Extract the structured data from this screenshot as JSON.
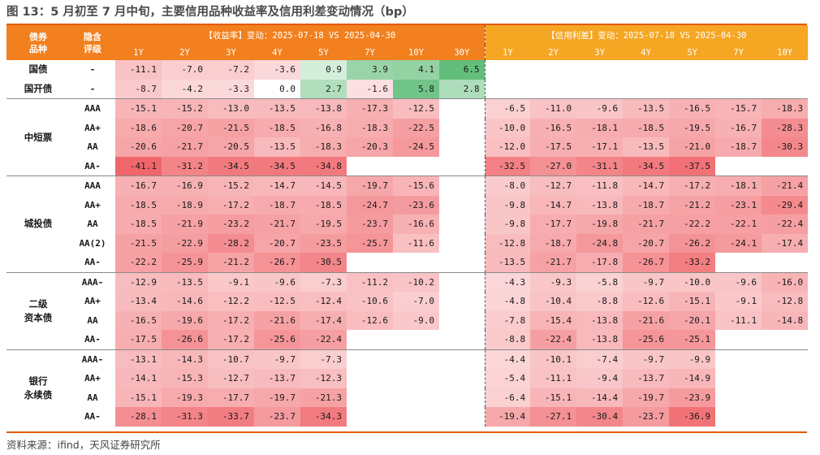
{
  "title": "图 13：5 月初至 7 月中旬，主要信用品种收益率及信用利差变动情况（bp）",
  "source": "资料来源：ifind，天风证券研究所",
  "header": {
    "col_bond_type": "债券\n品种",
    "col_rating": "隐含\n评级",
    "yield_group": "【收益率】变动：2025-07-18 VS 2025-04-30",
    "spread_group": "【信用利差】变动：2025-07-18 VS 2025-04-30",
    "yield_terms": [
      "1Y",
      "2Y",
      "3Y",
      "4Y",
      "5Y",
      "7Y",
      "10Y",
      "30Y"
    ],
    "spread_terms": [
      "1Y",
      "2Y",
      "3Y",
      "4Y",
      "5Y",
      "7Y",
      "10Y"
    ]
  },
  "groups": [
    {
      "name": "国债",
      "rows": [
        {
          "rating": "-",
          "yield": [
            "-11.1",
            "-7.0",
            "-7.2",
            "-3.6",
            "0.9",
            "3.9",
            "4.1",
            "6.5"
          ],
          "spread": [
            "",
            "",
            "",
            "",
            "",
            "",
            ""
          ]
        }
      ]
    },
    {
      "name": "国开债",
      "rows": [
        {
          "rating": "-",
          "yield": [
            "-8.7",
            "-4.2",
            "-3.3",
            "0.0",
            "2.7",
            "-1.6",
            "5.8",
            "2.8"
          ],
          "spread": [
            "",
            "",
            "",
            "",
            "",
            "",
            ""
          ]
        }
      ]
    },
    {
      "name": "中短票",
      "rows": [
        {
          "rating": "AAA",
          "yield": [
            "-15.1",
            "-15.2",
            "-13.0",
            "-13.5",
            "-13.8",
            "-17.3",
            "-12.5",
            ""
          ],
          "spread": [
            "-6.5",
            "-11.0",
            "-9.6",
            "-13.5",
            "-16.5",
            "-15.7",
            "-18.3"
          ]
        },
        {
          "rating": "AA+",
          "yield": [
            "-18.6",
            "-20.7",
            "-21.5",
            "-18.5",
            "-16.8",
            "-18.3",
            "-22.5",
            ""
          ],
          "spread": [
            "-10.0",
            "-16.5",
            "-18.1",
            "-18.5",
            "-19.5",
            "-16.7",
            "-28.3"
          ]
        },
        {
          "rating": "AA",
          "yield": [
            "-20.6",
            "-21.7",
            "-20.5",
            "-13.5",
            "-18.3",
            "-20.3",
            "-24.5",
            ""
          ],
          "spread": [
            "-12.0",
            "-17.5",
            "-17.1",
            "-13.5",
            "-21.0",
            "-18.7",
            "-30.3"
          ]
        },
        {
          "rating": "AA-",
          "yield": [
            "-41.1",
            "-31.2",
            "-34.5",
            "-34.5",
            "-34.8",
            "",
            "",
            ""
          ],
          "spread": [
            "-32.5",
            "-27.0",
            "-31.1",
            "-34.5",
            "-37.5",
            "",
            ""
          ]
        }
      ]
    },
    {
      "name": "城投债",
      "rows": [
        {
          "rating": "AAA",
          "yield": [
            "-16.7",
            "-16.9",
            "-15.2",
            "-14.7",
            "-14.5",
            "-19.7",
            "-15.6",
            ""
          ],
          "spread": [
            "-8.0",
            "-12.7",
            "-11.8",
            "-14.7",
            "-17.2",
            "-18.1",
            "-21.4"
          ]
        },
        {
          "rating": "AA+",
          "yield": [
            "-18.5",
            "-18.9",
            "-17.2",
            "-18.7",
            "-18.5",
            "-24.7",
            "-23.6",
            ""
          ],
          "spread": [
            "-9.8",
            "-14.7",
            "-13.8",
            "-18.7",
            "-21.2",
            "-23.1",
            "-29.4"
          ]
        },
        {
          "rating": "AA",
          "yield": [
            "-18.5",
            "-21.9",
            "-23.2",
            "-21.7",
            "-19.5",
            "-23.7",
            "-16.6",
            ""
          ],
          "spread": [
            "-9.8",
            "-17.7",
            "-19.8",
            "-21.7",
            "-22.2",
            "-22.1",
            "-22.4"
          ]
        },
        {
          "rating": "AA(2)",
          "yield": [
            "-21.5",
            "-22.9",
            "-28.2",
            "-20.7",
            "-23.5",
            "-25.7",
            "-11.6",
            ""
          ],
          "spread": [
            "-12.8",
            "-18.7",
            "-24.8",
            "-20.7",
            "-26.2",
            "-24.1",
            "-17.4"
          ]
        },
        {
          "rating": "AA-",
          "yield": [
            "-22.2",
            "-25.9",
            "-21.2",
            "-26.7",
            "-30.5",
            "",
            "",
            ""
          ],
          "spread": [
            "-13.5",
            "-21.7",
            "-17.8",
            "-26.7",
            "-33.2",
            "",
            ""
          ]
        }
      ]
    },
    {
      "name": "二级\n资本债",
      "rows": [
        {
          "rating": "AAA-",
          "yield": [
            "-12.9",
            "-13.5",
            "-9.1",
            "-9.6",
            "-7.3",
            "-11.2",
            "-10.2",
            ""
          ],
          "spread": [
            "-4.3",
            "-9.3",
            "-5.8",
            "-9.7",
            "-10.0",
            "-9.6",
            "-16.0"
          ]
        },
        {
          "rating": "AA+",
          "yield": [
            "-13.4",
            "-14.6",
            "-12.2",
            "-12.5",
            "-12.4",
            "-10.6",
            "-7.0",
            ""
          ],
          "spread": [
            "-4.8",
            "-10.4",
            "-8.8",
            "-12.6",
            "-15.1",
            "-9.1",
            "-12.8"
          ]
        },
        {
          "rating": "AA",
          "yield": [
            "-16.5",
            "-19.6",
            "-17.2",
            "-21.6",
            "-17.4",
            "-12.6",
            "-9.0",
            ""
          ],
          "spread": [
            "-7.8",
            "-15.4",
            "-13.8",
            "-21.6",
            "-20.1",
            "-11.1",
            "-14.8"
          ]
        },
        {
          "rating": "AA-",
          "yield": [
            "-17.5",
            "-26.6",
            "-17.2",
            "-25.6",
            "-22.4",
            "",
            "",
            ""
          ],
          "spread": [
            "-8.8",
            "-22.4",
            "-13.8",
            "-25.6",
            "-25.1",
            "",
            ""
          ]
        }
      ]
    },
    {
      "name": "银行\n永续债",
      "rows": [
        {
          "rating": "AAA-",
          "yield": [
            "-13.1",
            "-14.3",
            "-10.7",
            "-9.7",
            "-7.3",
            "",
            "",
            ""
          ],
          "spread": [
            "-4.4",
            "-10.1",
            "-7.4",
            "-9.7",
            "-9.9",
            "",
            ""
          ]
        },
        {
          "rating": "AA+",
          "yield": [
            "-14.1",
            "-15.3",
            "-12.7",
            "-13.7",
            "-12.3",
            "",
            "",
            ""
          ],
          "spread": [
            "-5.4",
            "-11.1",
            "-9.4",
            "-13.7",
            "-14.9",
            "",
            ""
          ]
        },
        {
          "rating": "AA",
          "yield": [
            "-15.1",
            "-19.3",
            "-17.7",
            "-19.7",
            "-21.3",
            "",
            "",
            ""
          ],
          "spread": [
            "-6.4",
            "-15.1",
            "-14.4",
            "-19.7",
            "-23.9",
            "",
            ""
          ]
        },
        {
          "rating": "AA-",
          "yield": [
            "-28.1",
            "-31.3",
            "-33.7",
            "-23.7",
            "-34.3",
            "",
            "",
            ""
          ],
          "spread": [
            "-19.4",
            "-27.1",
            "-30.4",
            "-23.7",
            "-36.9",
            "",
            ""
          ]
        }
      ]
    }
  ],
  "colors": {
    "header_yield": "#f2801e",
    "header_spread": "#f5a623",
    "rule": "#e25b0f",
    "negative_max": "#f0666b",
    "positive_max": "#63be7b"
  }
}
